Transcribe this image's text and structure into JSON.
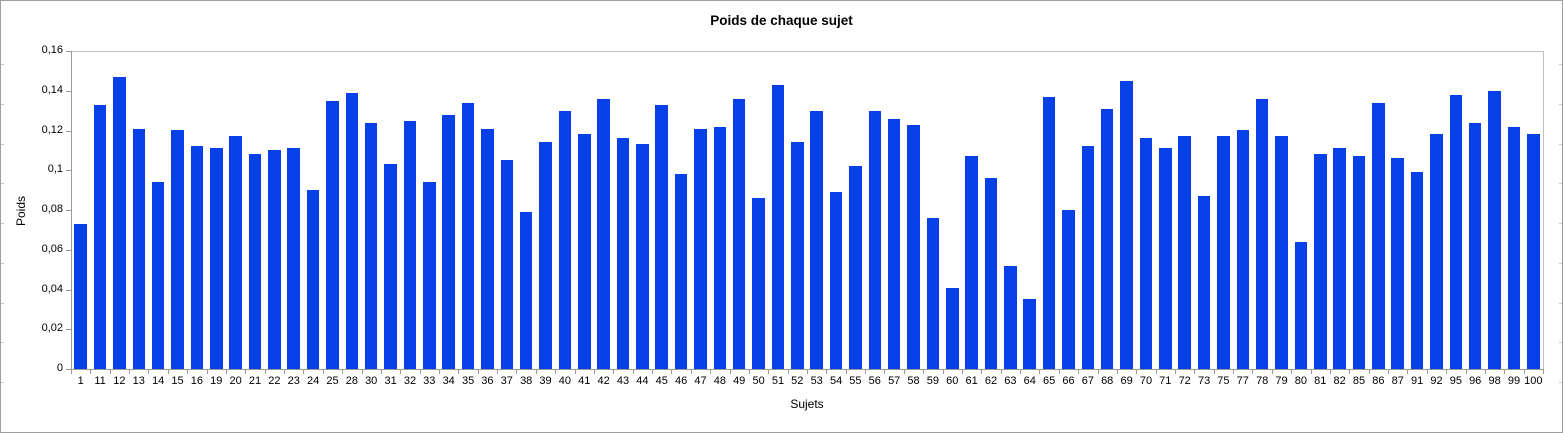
{
  "title": "Poids de chaque sujet",
  "colors": {
    "bar": "#0840e8",
    "axis": "#9a9a9a",
    "plot_border": "#c0c0c0",
    "frame": "#9e9e9e",
    "text": "#000000"
  },
  "chart_data": {
    "type": "bar",
    "title": "Poids de chaque sujet",
    "xlabel": "Sujets",
    "ylabel": "Poids",
    "ylim": [
      0,
      0.16
    ],
    "ytick_step": 0.02,
    "ytick_labels": [
      "0",
      "0,02",
      "0,04",
      "0,06",
      "0,08",
      "0,1",
      "0,12",
      "0,14",
      "0,16"
    ],
    "grid": "top and right plot border only, no inner gridlines",
    "legend_position": "none",
    "bar_color": "#0840e8",
    "categories": [
      "1",
      "11",
      "12",
      "13",
      "14",
      "15",
      "16",
      "19",
      "20",
      "21",
      "22",
      "23",
      "24",
      "25",
      "28",
      "30",
      "31",
      "32",
      "33",
      "34",
      "35",
      "36",
      "37",
      "38",
      "39",
      "40",
      "41",
      "42",
      "43",
      "44",
      "45",
      "46",
      "47",
      "48",
      "49",
      "50",
      "51",
      "52",
      "53",
      "54",
      "55",
      "56",
      "57",
      "58",
      "59",
      "60",
      "61",
      "62",
      "63",
      "64",
      "65",
      "66",
      "67",
      "68",
      "69",
      "70",
      "71",
      "72",
      "73",
      "75",
      "77",
      "78",
      "79",
      "80",
      "81",
      "82",
      "85",
      "86",
      "87",
      "91",
      "92",
      "95",
      "96",
      "98",
      "99",
      "100"
    ],
    "values": [
      0.073,
      0.133,
      0.147,
      0.121,
      0.094,
      0.12,
      0.112,
      0.111,
      0.117,
      0.108,
      0.11,
      0.111,
      0.09,
      0.135,
      0.139,
      0.124,
      0.103,
      0.125,
      0.094,
      0.128,
      0.134,
      0.121,
      0.105,
      0.079,
      0.114,
      0.13,
      0.118,
      0.136,
      0.116,
      0.113,
      0.133,
      0.098,
      0.121,
      0.122,
      0.136,
      0.086,
      0.143,
      0.114,
      0.13,
      0.089,
      0.102,
      0.13,
      0.126,
      0.123,
      0.076,
      0.041,
      0.107,
      0.096,
      0.052,
      0.035,
      0.137,
      0.08,
      0.112,
      0.131,
      0.145,
      0.116,
      0.111,
      0.117,
      0.087,
      0.117,
      0.12,
      0.136,
      0.117,
      0.064,
      0.108,
      0.111,
      0.107,
      0.134,
      0.106,
      0.099,
      0.118,
      0.138,
      0.124,
      0.14,
      0.122,
      0.118
    ]
  }
}
